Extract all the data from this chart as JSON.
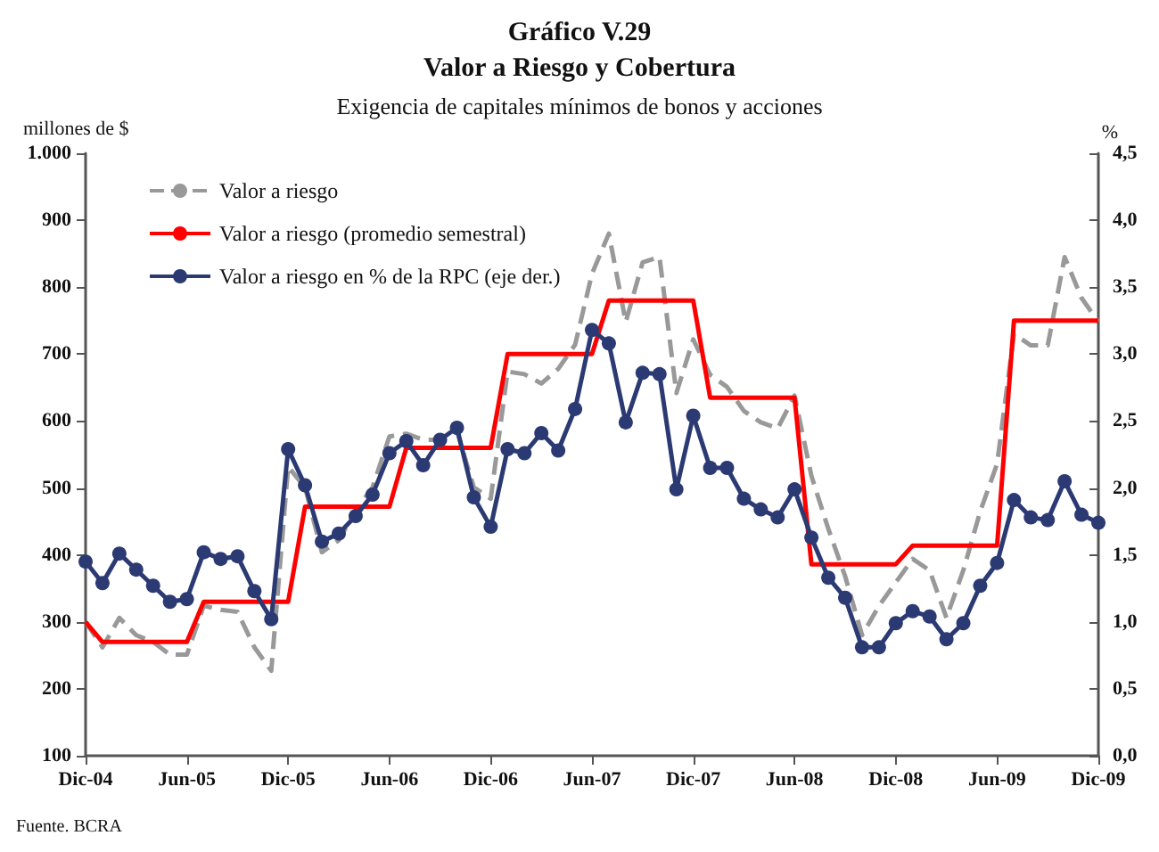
{
  "chart_data": {
    "type": "line",
    "title": "Gráfico V.29\nValor a Riesgo y Cobertura",
    "subtitle": "Exigencia de capitales mínimos de bonos y acciones",
    "ylabel": "millones de $",
    "y2label": "%",
    "categories": [
      "Dic-04",
      null,
      null,
      null,
      null,
      null,
      "Jun-05",
      null,
      null,
      null,
      null,
      null,
      "Dic-05",
      null,
      null,
      null,
      null,
      null,
      "Jun-06",
      null,
      null,
      null,
      null,
      null,
      "Dic-06",
      null,
      null,
      null,
      null,
      null,
      "Jun-07",
      null,
      null,
      null,
      null,
      null,
      "Dic-07",
      null,
      null,
      null,
      null,
      null,
      "Jun-08",
      null,
      null,
      null,
      null,
      null,
      "Dic-08",
      null,
      null,
      null,
      null,
      null,
      "Jun-09",
      null,
      null,
      null,
      null,
      null,
      "Dic-09"
    ],
    "series": [
      {
        "name": "Valor a riesgo",
        "color": "#999999",
        "line_style": "dashed",
        "marker": "none",
        "values": [
          300,
          262,
          306,
          280,
          270,
          251,
          251,
          324,
          318,
          315,
          262,
          227,
          532,
          501,
          404,
          422,
          466,
          501,
          577,
          581,
          572,
          572,
          585,
          501,
          484,
          674,
          670,
          656,
          678,
          714,
          820,
          880,
          748,
          837,
          845,
          642,
          722,
          669,
          651,
          615,
          598,
          589,
          638,
          518,
          439,
          368,
          280,
          324,
          359,
          394,
          377,
          306,
          377,
          465,
          536,
          730,
          713,
          713,
          845,
          784,
          748
        ]
      },
      {
        "name": "Valor a riesgo (promedio semestral)",
        "color": "#ff0000",
        "line_style": "solid",
        "marker": "none",
        "values": [
          300,
          270,
          270,
          270,
          270,
          270,
          270,
          330,
          330,
          330,
          330,
          330,
          330,
          472,
          472,
          472,
          472,
          472,
          472,
          560,
          560,
          560,
          560,
          560,
          560,
          700,
          700,
          700,
          700,
          700,
          700,
          780,
          780,
          780,
          780,
          780,
          780,
          635,
          635,
          635,
          635,
          635,
          635,
          386,
          386,
          386,
          386,
          386,
          386,
          414,
          414,
          414,
          414,
          414,
          414,
          750,
          750,
          750,
          750,
          750,
          750
        ]
      },
      {
        "name": "Valor a riesgo en % de la RPC (eje der.)",
        "color": "#2b3a73",
        "line_style": "solid",
        "marker": "circle",
        "axis": "y2",
        "values": [
          1.45,
          1.29,
          1.51,
          1.39,
          1.27,
          1.15,
          1.17,
          1.52,
          1.47,
          1.49,
          1.23,
          1.02,
          2.29,
          2.02,
          1.6,
          1.66,
          1.79,
          1.95,
          2.26,
          2.35,
          2.17,
          2.36,
          2.45,
          1.93,
          1.71,
          2.29,
          2.26,
          2.41,
          2.28,
          2.59,
          3.18,
          3.08,
          2.49,
          2.86,
          2.85,
          1.99,
          2.54,
          2.15,
          2.15,
          1.92,
          1.84,
          1.78,
          1.99,
          1.63,
          1.33,
          1.18,
          0.81,
          0.81,
          0.99,
          1.08,
          1.04,
          0.87,
          0.99,
          1.27,
          1.44,
          1.91,
          1.78,
          1.76,
          2.05,
          1.8,
          1.74
        ]
      }
    ],
    "ylim": [
      100,
      1000
    ],
    "yticks": [
      100,
      200,
      300,
      400,
      500,
      600,
      700,
      800,
      900,
      {
        "value": 1000,
        "label": "1.000"
      }
    ],
    "y2lim": [
      0,
      4.5
    ],
    "y2ticks": [
      {
        "value": 0,
        "label": "0,0"
      },
      {
        "value": 0.5,
        "label": "0,5"
      },
      {
        "value": 1,
        "label": "1,0"
      },
      {
        "value": 1.5,
        "label": "1,5"
      },
      {
        "value": 2,
        "label": "2,0"
      },
      {
        "value": 2.5,
        "label": "2,5"
      },
      {
        "value": 3,
        "label": "3,0"
      },
      {
        "value": 3.5,
        "label": "3,5"
      },
      {
        "value": 4,
        "label": "4,0"
      },
      {
        "value": 4.5,
        "label": "4,5"
      }
    ],
    "grid": false,
    "legend": "top left",
    "annotations": [
      "Fuente. BCRA"
    ]
  }
}
